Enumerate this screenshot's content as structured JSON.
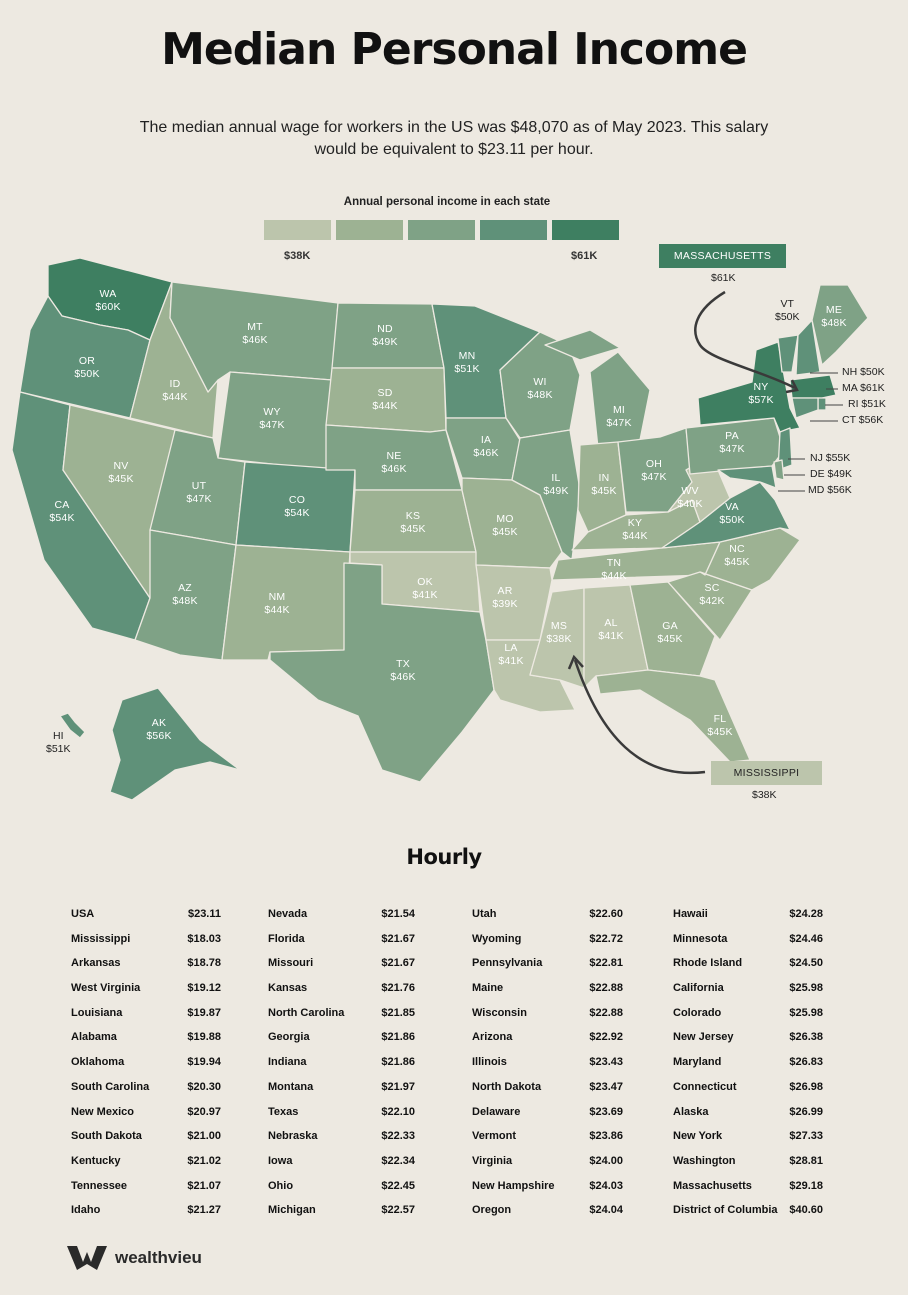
{
  "title": "Median Personal Income",
  "subtitle": "The median annual wage for workers in the US was $48,070 as of May 2023. This salary would be equivalent to $23.11 per hour.",
  "legend": {
    "title": "Annual personal income in each state",
    "min_label": "$38K",
    "max_label": "$61K",
    "colors": [
      "#bcc5ac",
      "#9db293",
      "#7fa286",
      "#5f9179",
      "#3e7f61"
    ]
  },
  "states": {
    "WA": {
      "label": "WA",
      "value": "$60K"
    },
    "OR": {
      "label": "OR",
      "value": "$50K"
    },
    "CA": {
      "label": "CA",
      "value": "$54K"
    },
    "NV": {
      "label": "NV",
      "value": "$45K"
    },
    "ID": {
      "label": "ID",
      "value": "$44K"
    },
    "MT": {
      "label": "MT",
      "value": "$46K"
    },
    "WY": {
      "label": "WY",
      "value": "$47K"
    },
    "UT": {
      "label": "UT",
      "value": "$47K"
    },
    "AZ": {
      "label": "AZ",
      "value": "$48K"
    },
    "CO": {
      "label": "CO",
      "value": "$54K"
    },
    "NM": {
      "label": "NM",
      "value": "$44K"
    },
    "ND": {
      "label": "ND",
      "value": "$49K"
    },
    "SD": {
      "label": "SD",
      "value": "$44K"
    },
    "NE": {
      "label": "NE",
      "value": "$46K"
    },
    "KS": {
      "label": "KS",
      "value": "$45K"
    },
    "OK": {
      "label": "OK",
      "value": "$41K"
    },
    "TX": {
      "label": "TX",
      "value": "$46K"
    },
    "MN": {
      "label": "MN",
      "value": "$51K"
    },
    "IA": {
      "label": "IA",
      "value": "$46K"
    },
    "MO": {
      "label": "MO",
      "value": "$45K"
    },
    "AR": {
      "label": "AR",
      "value": "$39K"
    },
    "LA": {
      "label": "LA",
      "value": "$41K"
    },
    "WI": {
      "label": "WI",
      "value": "$48K"
    },
    "IL": {
      "label": "IL",
      "value": "$49K"
    },
    "MI": {
      "label": "MI",
      "value": "$47K"
    },
    "IN": {
      "label": "IN",
      "value": "$45K"
    },
    "OH": {
      "label": "OH",
      "value": "$47K"
    },
    "KY": {
      "label": "KY",
      "value": "$44K"
    },
    "TN": {
      "label": "TN",
      "value": "$44K"
    },
    "MS": {
      "label": "MS",
      "value": "$38K"
    },
    "AL": {
      "label": "AL",
      "value": "$41K"
    },
    "GA": {
      "label": "GA",
      "value": "$45K"
    },
    "FL": {
      "label": "FL",
      "value": "$45K"
    },
    "SC": {
      "label": "SC",
      "value": "$42K"
    },
    "NC": {
      "label": "NC",
      "value": "$45K"
    },
    "VA": {
      "label": "VA",
      "value": "$50K"
    },
    "WV": {
      "label": "WV",
      "value": "$40K"
    },
    "PA": {
      "label": "PA",
      "value": "$47K"
    },
    "NY": {
      "label": "NY",
      "value": "$57K"
    },
    "VT": {
      "label": "VT",
      "value": "$50K"
    },
    "ME": {
      "label": "ME",
      "value": "$48K"
    },
    "AK": {
      "label": "AK",
      "value": "$56K"
    },
    "HI": {
      "label": "HI",
      "value": "$51K"
    }
  },
  "east_labels": {
    "NH": "NH $50K",
    "MA": "MA $61K",
    "RI": "RI $51K",
    "CT": "CT $56K",
    "NJ": "NJ $55K",
    "DE": "DE $49K",
    "MD": "MD $56K"
  },
  "callouts": {
    "massachusetts": {
      "label": "MASSACHUSETTS",
      "value": "$61K",
      "color": "#3e7f61"
    },
    "mississippi": {
      "label": "MISSISSIPPI",
      "value": "$38K",
      "color": "#bcc5ac"
    }
  },
  "hourly": {
    "title": "Hourly",
    "columns": [
      [
        {
          "name": "USA",
          "value": "$23.11"
        },
        {
          "name": "Mississippi",
          "value": "$18.03"
        },
        {
          "name": "Arkansas",
          "value": "$18.78"
        },
        {
          "name": "West Virginia",
          "value": "$19.12"
        },
        {
          "name": "Louisiana",
          "value": "$19.87"
        },
        {
          "name": "Alabama",
          "value": "$19.88"
        },
        {
          "name": "Oklahoma",
          "value": "$19.94"
        },
        {
          "name": "South Carolina",
          "value": "$20.30"
        },
        {
          "name": "New Mexico",
          "value": "$20.97"
        },
        {
          "name": "South Dakota",
          "value": "$21.00"
        },
        {
          "name": "Kentucky",
          "value": "$21.02"
        },
        {
          "name": "Tennessee",
          "value": "$21.07"
        },
        {
          "name": "Idaho",
          "value": "$21.27"
        }
      ],
      [
        {
          "name": "Nevada",
          "value": "$21.54"
        },
        {
          "name": "Florida",
          "value": "$21.67"
        },
        {
          "name": "Missouri",
          "value": "$21.67"
        },
        {
          "name": "Kansas",
          "value": "$21.76"
        },
        {
          "name": "North Carolina",
          "value": "$21.85"
        },
        {
          "name": "Georgia",
          "value": "$21.86"
        },
        {
          "name": "Indiana",
          "value": "$21.86"
        },
        {
          "name": "Montana",
          "value": "$21.97"
        },
        {
          "name": "Texas",
          "value": "$22.10"
        },
        {
          "name": "Nebraska",
          "value": "$22.33"
        },
        {
          "name": "Iowa",
          "value": "$22.34"
        },
        {
          "name": "Ohio",
          "value": "$22.45"
        },
        {
          "name": "Michigan",
          "value": "$22.57"
        }
      ],
      [
        {
          "name": "Utah",
          "value": "$22.60"
        },
        {
          "name": "Wyoming",
          "value": "$22.72"
        },
        {
          "name": "Pennsylvania",
          "value": "$22.81"
        },
        {
          "name": "Maine",
          "value": "$22.88"
        },
        {
          "name": "Wisconsin",
          "value": "$22.88"
        },
        {
          "name": "Arizona",
          "value": "$22.92"
        },
        {
          "name": "Illinois",
          "value": "$23.43"
        },
        {
          "name": "North Dakota",
          "value": "$23.47"
        },
        {
          "name": "Delaware",
          "value": "$23.69"
        },
        {
          "name": "Vermont",
          "value": "$23.86"
        },
        {
          "name": "Virginia",
          "value": "$24.00"
        },
        {
          "name": "New Hampshire",
          "value": "$24.03"
        },
        {
          "name": "Oregon",
          "value": "$24.04"
        }
      ],
      [
        {
          "name": "Hawaii",
          "value": "$24.28"
        },
        {
          "name": "Minnesota",
          "value": "$24.46"
        },
        {
          "name": "Rhode Island",
          "value": "$24.50"
        },
        {
          "name": "California",
          "value": "$25.98"
        },
        {
          "name": "Colorado",
          "value": "$25.98"
        },
        {
          "name": "New Jersey",
          "value": "$26.38"
        },
        {
          "name": "Maryland",
          "value": "$26.83"
        },
        {
          "name": "Connecticut",
          "value": "$26.98"
        },
        {
          "name": "Alaska",
          "value": "$26.99"
        },
        {
          "name": "New York",
          "value": "$27.33"
        },
        {
          "name": "Washington",
          "value": "$28.81"
        },
        {
          "name": "Massachusetts",
          "value": "$29.18"
        },
        {
          "name": "District of Columbia",
          "value": "$40.60"
        }
      ]
    ]
  },
  "brand": {
    "name": "wealthvieu"
  }
}
